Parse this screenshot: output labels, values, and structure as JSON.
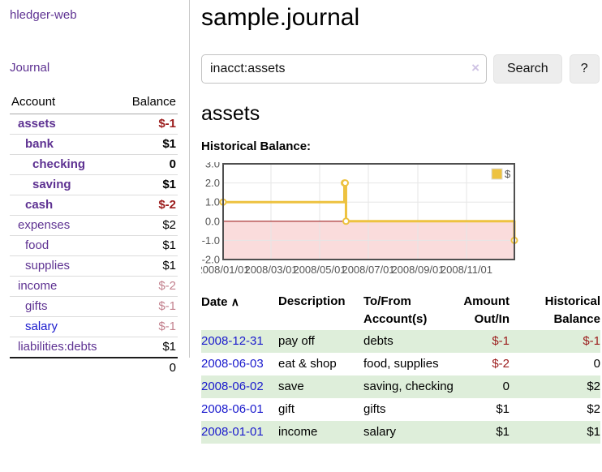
{
  "app": {
    "brand": "hledger-web"
  },
  "colors": {
    "link_purple": "#5e3292",
    "link_blue": "#1a1acd",
    "negative_strong": "#9b1c1c",
    "negative_soft": "#c3818e",
    "row_green": "#deeeda",
    "series_gold": "#edc240",
    "zero_line_red": "#a02222",
    "negative_region_pink": "#fadcdc"
  },
  "sidebar": {
    "journal_link": "Journal",
    "accounts_table": {
      "headers": {
        "account": "Account",
        "balance": "Balance"
      },
      "rows": [
        {
          "name": "assets",
          "balance": "$-1",
          "depth": 1,
          "bold": true,
          "link": "purple",
          "tone": "neg"
        },
        {
          "name": "bank",
          "balance": "$1",
          "depth": 2,
          "bold": true,
          "link": "purple",
          "tone": "pos"
        },
        {
          "name": "checking",
          "balance": "0",
          "depth": 3,
          "bold": true,
          "link": "purple",
          "tone": "pos"
        },
        {
          "name": "saving",
          "balance": "$1",
          "depth": 3,
          "bold": true,
          "link": "purple",
          "tone": "pos"
        },
        {
          "name": "cash",
          "balance": "$-2",
          "depth": 2,
          "bold": true,
          "link": "purple",
          "tone": "neg"
        },
        {
          "name": "expenses",
          "balance": "$2",
          "depth": 1,
          "bold": false,
          "link": "purple",
          "tone": "pos"
        },
        {
          "name": "food",
          "balance": "$1",
          "depth": 2,
          "bold": false,
          "link": "purple",
          "tone": "pos"
        },
        {
          "name": "supplies",
          "balance": "$1",
          "depth": 2,
          "bold": false,
          "link": "purple",
          "tone": "pos"
        },
        {
          "name": "income",
          "balance": "$-2",
          "depth": 1,
          "bold": false,
          "link": "purple",
          "tone": "negsoft"
        },
        {
          "name": "gifts",
          "balance": "$-1",
          "depth": 2,
          "bold": false,
          "link": "purple",
          "tone": "negsoft"
        },
        {
          "name": "salary",
          "balance": "$-1",
          "depth": 2,
          "bold": false,
          "link": "blue",
          "tone": "negsoft"
        },
        {
          "name": "liabilities:debts",
          "balance": "$1",
          "depth": 1,
          "bold": false,
          "link": "purple",
          "tone": "pos"
        }
      ],
      "total": "0"
    }
  },
  "main": {
    "title": "sample.journal",
    "search": {
      "value": "inacct:assets",
      "clear_label": "×",
      "button_label": "Search",
      "help_label": "?"
    },
    "account_heading": "assets",
    "chart_heading": "Historical Balance:"
  },
  "chart_data": {
    "type": "line",
    "step": true,
    "title": "Historical Balance",
    "legend": {
      "label": "$",
      "position": "top-right"
    },
    "xlim": [
      "2008-01-01",
      "2008-12-31"
    ],
    "ylim": [
      -2,
      3
    ],
    "y_ticks": [
      "3.0",
      "2.0",
      "1.0",
      "0.0",
      "-1.0",
      "-2.0"
    ],
    "x_ticks": [
      "2008/01/01",
      "2008/03/01",
      "2008/05/01",
      "2008/07/01",
      "2008/09/01",
      "2008/11/01"
    ],
    "series": [
      {
        "name": "$",
        "color": "#edc240",
        "points": [
          {
            "date": "2008-01-01",
            "value": 1
          },
          {
            "date": "2008-06-01",
            "value": 2
          },
          {
            "date": "2008-06-02",
            "value": 2
          },
          {
            "date": "2008-06-03",
            "value": 0
          },
          {
            "date": "2008-12-31",
            "value": -1
          }
        ]
      }
    ],
    "grid": true
  },
  "register": {
    "headers": {
      "date": "Date",
      "sort_caret": "∧",
      "description": "Description",
      "accounts": "To/From Account(s)",
      "amount": "Amount Out/In",
      "balance": "Historical Balance"
    },
    "rows": [
      {
        "date": "2008-12-31",
        "description": "pay off",
        "accounts": "debts",
        "amount": "$-1",
        "amount_negative": true,
        "balance": "$-1",
        "balance_negative": true
      },
      {
        "date": "2008-06-03",
        "description": "eat & shop",
        "accounts": "food, supplies",
        "amount": "$-2",
        "amount_negative": true,
        "balance": "0",
        "balance_negative": false
      },
      {
        "date": "2008-06-02",
        "description": "save",
        "accounts": "saving, checking",
        "amount": "0",
        "amount_negative": false,
        "balance": "$2",
        "balance_negative": false
      },
      {
        "date": "2008-06-01",
        "description": "gift",
        "accounts": "gifts",
        "amount": "$1",
        "amount_negative": false,
        "balance": "$2",
        "balance_negative": false
      },
      {
        "date": "2008-01-01",
        "description": "income",
        "accounts": "salary",
        "amount": "$1",
        "amount_negative": false,
        "balance": "$1",
        "balance_negative": false
      }
    ]
  }
}
